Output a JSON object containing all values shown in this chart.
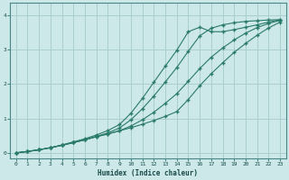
{
  "xlabel": "Humidex (Indice chaleur)",
  "ylabel": "",
  "bg_color": "#cce8e8",
  "line_color": "#2a7a6a",
  "grid_color": "#aacece",
  "xlim": [
    -0.5,
    23.5
  ],
  "ylim": [
    -0.15,
    4.35
  ],
  "xticks": [
    0,
    1,
    2,
    3,
    4,
    5,
    6,
    7,
    8,
    9,
    10,
    11,
    12,
    13,
    14,
    15,
    16,
    17,
    18,
    19,
    20,
    21,
    22,
    23
  ],
  "yticks": [
    0,
    1,
    2,
    3,
    4
  ],
  "line1_x": [
    0,
    1,
    2,
    3,
    4,
    5,
    6,
    7,
    8,
    9,
    10,
    11,
    12,
    13,
    14,
    15,
    16,
    17,
    18,
    19,
    20,
    21,
    22,
    23
  ],
  "line1_y": [
    0.0,
    0.04,
    0.09,
    0.15,
    0.22,
    0.3,
    0.38,
    0.47,
    0.55,
    0.64,
    0.73,
    0.83,
    0.94,
    1.06,
    1.2,
    1.55,
    1.95,
    2.3,
    2.62,
    2.92,
    3.18,
    3.42,
    3.63,
    3.8
  ],
  "line2_x": [
    0,
    1,
    2,
    3,
    4,
    5,
    6,
    7,
    8,
    9,
    10,
    11,
    12,
    13,
    14,
    15,
    16,
    17,
    18,
    19,
    20,
    21,
    22,
    23
  ],
  "line2_y": [
    0.0,
    0.04,
    0.09,
    0.15,
    0.22,
    0.3,
    0.38,
    0.47,
    0.55,
    0.64,
    0.78,
    0.96,
    1.18,
    1.44,
    1.72,
    2.08,
    2.45,
    2.78,
    3.05,
    3.28,
    3.48,
    3.64,
    3.76,
    3.85
  ],
  "line3_x": [
    0,
    1,
    2,
    3,
    4,
    5,
    6,
    7,
    8,
    9,
    10,
    11,
    12,
    13,
    14,
    15,
    16,
    17,
    18,
    19,
    20,
    21,
    22,
    23
  ],
  "line3_y": [
    0.0,
    0.04,
    0.09,
    0.15,
    0.22,
    0.3,
    0.38,
    0.48,
    0.58,
    0.72,
    0.96,
    1.28,
    1.65,
    2.06,
    2.48,
    2.95,
    3.4,
    3.62,
    3.72,
    3.78,
    3.82,
    3.84,
    3.86,
    3.87
  ],
  "line4_x": [
    0,
    1,
    2,
    3,
    4,
    5,
    6,
    7,
    8,
    9,
    10,
    11,
    12,
    13,
    14,
    15,
    16,
    17,
    18,
    19,
    20,
    21,
    22,
    23
  ],
  "line4_y": [
    0.0,
    0.04,
    0.09,
    0.15,
    0.23,
    0.32,
    0.41,
    0.52,
    0.65,
    0.82,
    1.15,
    1.58,
    2.05,
    2.52,
    2.98,
    3.52,
    3.65,
    3.52,
    3.52,
    3.58,
    3.65,
    3.72,
    3.8,
    3.87
  ]
}
